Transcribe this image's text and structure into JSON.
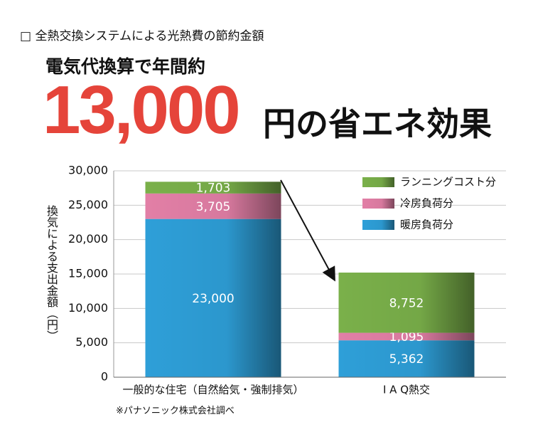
{
  "chart_data": {
    "type": "stacked-bar",
    "title": "□ 全熱交換システムによる光熱費の節約金額",
    "subtitle": "電気代換算で年間約",
    "headline": "13,000",
    "headline_suffix": "円の省エネ効果",
    "y_label": "換気による支出金額（円）",
    "note": "※パナソニック株式会社調べ",
    "categories": [
      "一般的な住宅（自然給気・強制排気）",
      "I A Q熱交"
    ],
    "series": [
      {
        "name": "暖房負荷分",
        "color": "#2e9fd8",
        "values": [
          23000,
          5362
        ],
        "value_labels": [
          "23,000",
          "5,362"
        ]
      },
      {
        "name": "冷房負荷分",
        "color": "#e27fa6",
        "values": [
          3705,
          1095
        ],
        "value_labels": [
          "3,705",
          "1,095"
        ]
      },
      {
        "name": "ランニングコスト分",
        "color": "#7ab04a",
        "values": [
          1703,
          8752
        ],
        "value_labels": [
          "1,703",
          "8,752"
        ]
      }
    ],
    "ylim": [
      0,
      30000
    ],
    "yticks": [
      0,
      {
        "value": 5000,
        "label": "5,000"
      },
      {
        "value": 10000,
        "label": "10,000"
      },
      {
        "value": 15000,
        "label": "15,000"
      },
      {
        "value": 20000,
        "label": "20,000"
      },
      {
        "value": 25000,
        "label": "25,000"
      },
      {
        "value": 30000,
        "label": "30,000"
      }
    ],
    "grid": true,
    "legend": "top-right"
  }
}
